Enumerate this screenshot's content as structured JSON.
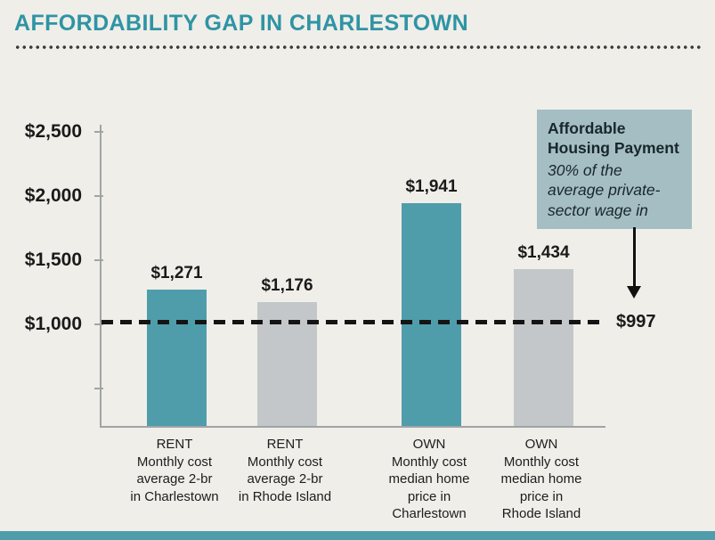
{
  "colors": {
    "accent_teal": "#2E94A4",
    "bar_teal": "#4F9DAB",
    "bar_gray": "#C3C7C9",
    "callout_bg": "#A5BEC3",
    "background": "#F0EEE9",
    "axis": "#9FA4A6",
    "ink": "#1A1A1A"
  },
  "chart_data": {
    "type": "bar",
    "title": "AFFORDABILITY GAP IN CHARLESTOWN",
    "categories": [
      "RENT\nMonthly cost\naverage 2-br\nin Charlestown",
      "RENT\nMonthly cost\naverage 2-br\nin Rhode Island",
      "OWN\nMonthly cost\nmedian home\nprice in\nCharlestown",
      "OWN\nMonthly cost\nmedian home\nprice in\nRhode Island"
    ],
    "values": [
      1271,
      1176,
      1941,
      1434
    ],
    "value_labels": [
      "$1,271",
      "$1,176",
      "$1,941",
      "$1,434"
    ],
    "bar_colors": [
      "#4F9DAB",
      "#C3C7C9",
      "#4F9DAB",
      "#C3C7C9"
    ],
    "ylim": [
      0,
      2500
    ],
    "yticks": [
      {
        "value": 2500,
        "label": "$2,500"
      },
      {
        "value": 2000,
        "label": "$2,000"
      },
      {
        "value": 1500,
        "label": "$1,500"
      },
      {
        "value": 1000,
        "label": "$1,000"
      },
      {
        "value": 500,
        "label": ""
      }
    ],
    "reference_line": {
      "value": 997,
      "label": "$997"
    },
    "annotation": {
      "title": "Affordable\nHousing Payment",
      "body": "30% of the\naverage private-\nsector wage in"
    },
    "grid": false,
    "legend": false
  }
}
